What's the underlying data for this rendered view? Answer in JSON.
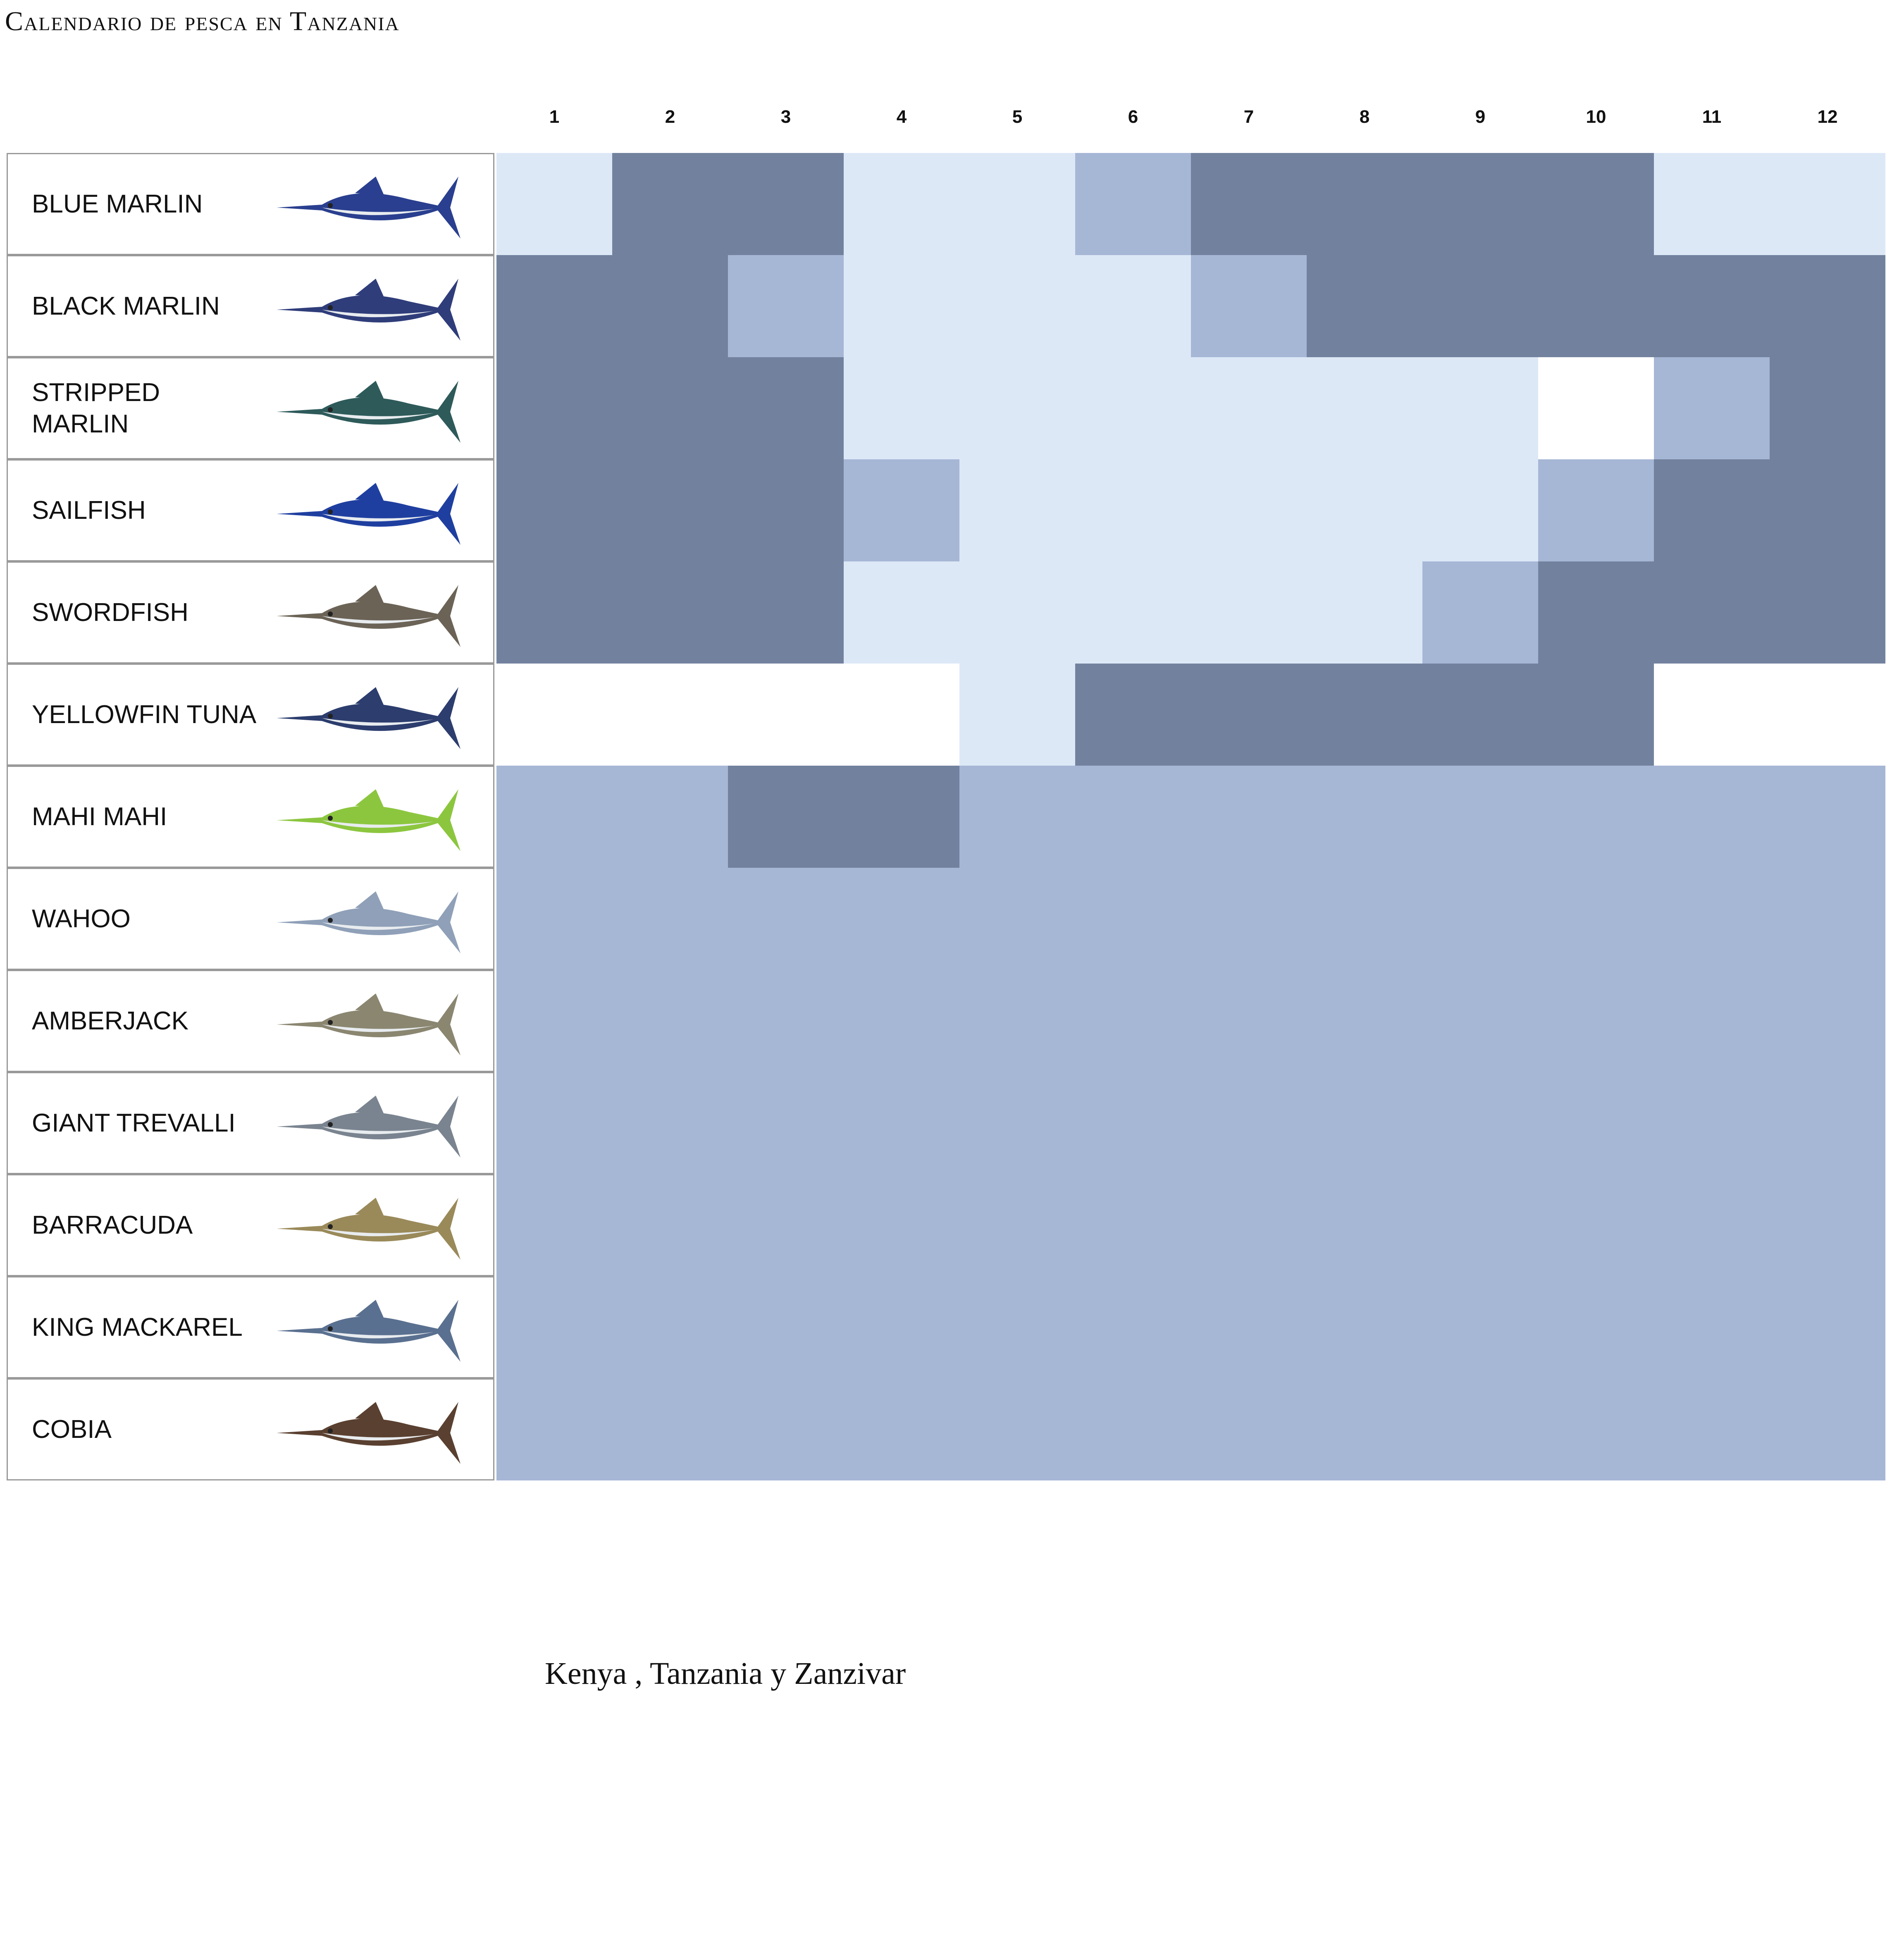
{
  "title": "Calendario de pesca en Tanzania",
  "footer": "Kenya , Tanzania y Zanzivar",
  "colors": {
    "0": "#ffffff",
    "1": "#dde8f7",
    "2": "#a6b6d5",
    "3": "#72829e"
  },
  "chart_data": {
    "type": "heatmap",
    "x": [
      "1",
      "2",
      "3",
      "4",
      "5",
      "6",
      "7",
      "8",
      "9",
      "10",
      "11",
      "12"
    ],
    "rows": [
      {
        "label": "BLUE MARLIN",
        "fish_color": "#2a3f8f",
        "levels": [
          1,
          3,
          3,
          1,
          1,
          2,
          3,
          3,
          3,
          3,
          1,
          1
        ]
      },
      {
        "label": "BLACK MARLIN",
        "fish_color": "#2f3d7a",
        "levels": [
          3,
          3,
          2,
          1,
          1,
          1,
          2,
          3,
          3,
          3,
          3,
          3
        ]
      },
      {
        "label": "STRIPPED MARLIN",
        "fish_color": "#2e5a5a",
        "levels": [
          3,
          3,
          3,
          1,
          1,
          1,
          1,
          1,
          1,
          0,
          2,
          3
        ]
      },
      {
        "label": "SAILFISH",
        "fish_color": "#1f3fa0",
        "levels": [
          3,
          3,
          3,
          2,
          1,
          1,
          1,
          1,
          1,
          2,
          3,
          3
        ]
      },
      {
        "label": "SWORDFISH",
        "fish_color": "#6b6356",
        "levels": [
          3,
          3,
          3,
          1,
          1,
          1,
          1,
          1,
          2,
          3,
          3,
          3
        ]
      },
      {
        "label": "YELLOWFIN TUNA",
        "fish_color": "#2c3d6e",
        "levels": [
          0,
          0,
          0,
          0,
          1,
          3,
          3,
          3,
          3,
          3,
          0,
          0
        ]
      },
      {
        "label": "MAHI MAHI",
        "fish_color": "#8cc63f",
        "levels": [
          2,
          2,
          3,
          3,
          2,
          2,
          2,
          2,
          2,
          2,
          2,
          2
        ]
      },
      {
        "label": "WAHOO",
        "fish_color": "#8fa0b8",
        "levels": [
          2,
          2,
          2,
          2,
          2,
          2,
          2,
          2,
          2,
          2,
          2,
          2
        ]
      },
      {
        "label": "AMBERJACK",
        "fish_color": "#8a8670",
        "levels": [
          2,
          2,
          2,
          2,
          2,
          2,
          2,
          2,
          2,
          2,
          2,
          2
        ]
      },
      {
        "label": "GIANT TREVALLI",
        "fish_color": "#7a8490",
        "levels": [
          2,
          2,
          2,
          2,
          2,
          2,
          2,
          2,
          2,
          2,
          2,
          2
        ]
      },
      {
        "label": "BARRACUDA",
        "fish_color": "#9a8a5a",
        "levels": [
          2,
          2,
          2,
          2,
          2,
          2,
          2,
          2,
          2,
          2,
          2,
          2
        ]
      },
      {
        "label": "KING MACKAREL",
        "fish_color": "#5a7090",
        "levels": [
          2,
          2,
          2,
          2,
          2,
          2,
          2,
          2,
          2,
          2,
          2,
          2
        ]
      },
      {
        "label": "COBIA",
        "fish_color": "#5a4030",
        "levels": [
          2,
          2,
          2,
          2,
          2,
          2,
          2,
          2,
          2,
          2,
          2,
          2
        ]
      }
    ]
  }
}
